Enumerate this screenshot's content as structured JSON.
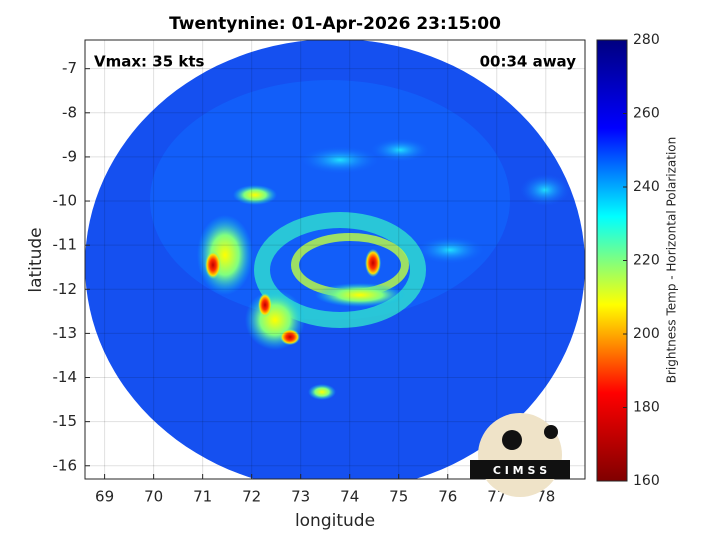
{
  "chart_data": {
    "type": "image",
    "title": "Twentynine: 01-Apr-2026 23:15:00",
    "xlabel": "longitude",
    "ylabel": "latitude",
    "annotations": [
      "Vmax: 35 kts",
      "00:34 away"
    ],
    "xlim": [
      68.6,
      78.8
    ],
    "xticks": [
      69,
      70,
      71,
      72,
      73,
      74,
      75,
      76,
      77,
      78
    ],
    "ylim": [
      -16.3,
      -6.35
    ],
    "yticks": [
      -16,
      -15,
      -14,
      -13,
      -12,
      -11,
      -10,
      -9,
      -8,
      -7
    ],
    "grid": true,
    "colorbar": {
      "label": "Brightness Temp - Horizontal Polarization",
      "clim": [
        160,
        280
      ],
      "ticks": [
        160,
        180,
        200,
        220,
        240,
        260,
        280
      ],
      "colormap": [
        "#800000",
        "#ff0000",
        "#ffff00",
        "#00ffff",
        "#0000ff",
        "#000080"
      ]
    }
  },
  "logo": "C I M S S"
}
